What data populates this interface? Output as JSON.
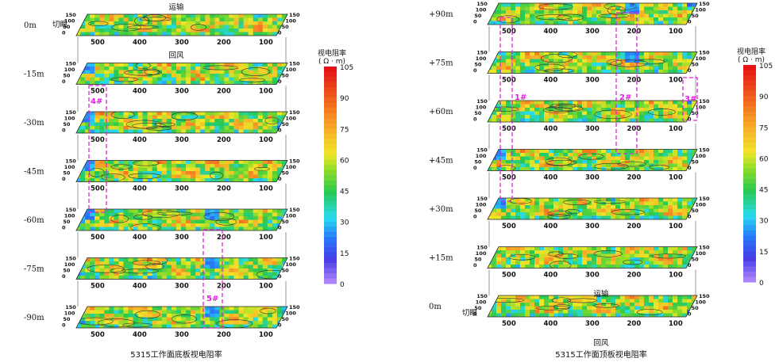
{
  "left": {
    "caption": "5315工作面底板视电阻率",
    "top_label": "运输",
    "right_label_top": "切眼",
    "mid_label": "回风",
    "slices": [
      "0m",
      "-15m",
      "-30m",
      "-45m",
      "-60m",
      "-75m",
      "-90m"
    ],
    "anomalies": [
      "4#",
      "5#"
    ]
  },
  "right": {
    "caption": "5315工作面顶板视电阻率",
    "bottom_label_a": "运输",
    "bottom_label_b": "切眼",
    "bottom_label_c": "回风",
    "slices": [
      "+90m",
      "+75m",
      "+60m",
      "+45m",
      "+30m",
      "+15m",
      "0m"
    ],
    "anomalies": [
      "1#",
      "2#",
      "3#"
    ]
  },
  "colorbar": {
    "title_line1": "视电阻率",
    "title_line2": "( Ω · m)",
    "ticks": [
      "105",
      "90",
      "75",
      "60",
      "45",
      "30",
      "15",
      "0"
    ]
  },
  "chart_data": [
    {
      "type": "heatmap",
      "title": "5315工作面底板视电阻率",
      "x_ticks": [
        500,
        400,
        300,
        200,
        100
      ],
      "y_ticks": [
        150,
        100,
        50,
        0
      ],
      "slices": [
        "0m",
        "-15m",
        "-30m",
        "-45m",
        "-60m",
        "-75m",
        "-90m"
      ],
      "value_range": [
        0,
        105
      ],
      "unit": "Ω·m",
      "anomalies": [
        "4#",
        "5#"
      ]
    },
    {
      "type": "heatmap",
      "title": "5315工作面顶板视电阻率",
      "x_ticks": [
        500,
        400,
        300,
        200,
        100
      ],
      "y_ticks": [
        150,
        100,
        50,
        0
      ],
      "slices": [
        "+90m",
        "+75m",
        "+60m",
        "+45m",
        "+30m",
        "+15m",
        "0m"
      ],
      "value_range": [
        0,
        105
      ],
      "unit": "Ω·m",
      "anomalies": [
        "1#",
        "2#",
        "3#"
      ]
    }
  ]
}
